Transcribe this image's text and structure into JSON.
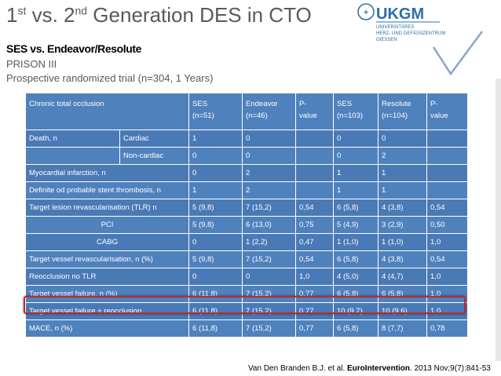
{
  "title": {
    "p1": "1",
    "sup1": "st",
    "p2": " vs. 2",
    "sup2": "nd",
    "p3": " Generation DES in CTO"
  },
  "logo": {
    "brand": "UKGM",
    "line1": "UNIVERSITÄRES",
    "line2": "HERZ- UND GEFÄSSZENTRUM",
    "line3": "GIESSEN"
  },
  "subtitle": "SES vs. Endeavor/Resolute",
  "trial_name": "PRISON III",
  "trial_desc": "Prospective randomized trial (n=304, 1 Years)",
  "header": {
    "col0": "Chronic total occlusion",
    "col1a": "SES",
    "col1b": "(n=51)",
    "col2a": "Endeavor",
    "col2b": "(n=46)",
    "col3a": "P-",
    "col3b": "value",
    "col4a": "SES",
    "col4b": "(n=103)",
    "col5a": "Resolute",
    "col5b": "(n=104)",
    "col6a": "P-",
    "col6b": "value"
  },
  "rows": [
    {
      "label": "Death, n",
      "sub": "Cardiac",
      "v": [
        "1",
        "0",
        "",
        "0",
        "0",
        ""
      ]
    },
    {
      "label": "",
      "sub": "Non-cardiac",
      "v": [
        "0",
        "0",
        "",
        "0",
        "2",
        ""
      ]
    },
    {
      "label": "Myocardial infarction, n",
      "v": [
        "0",
        "2",
        "",
        "1",
        "1",
        ""
      ]
    },
    {
      "label": "Definite od probable stent thrombosis, n",
      "v": [
        "1",
        "2",
        "",
        "1",
        "1",
        ""
      ]
    },
    {
      "label": "Target lesion revascularisation (TLR) n",
      "v": [
        "5 (9,8)",
        " 7 (15,2)",
        "0,54",
        "6 (5,8)",
        "4 (3,8)",
        "0,54"
      ]
    },
    {
      "label": "PCI",
      "v": [
        "5 (9,8)",
        "6 (13,0)",
        "0,75",
        "5 (4,9)",
        "3 (2,9)",
        "0,50"
      ]
    },
    {
      "label": "CABG",
      "v": [
        "0",
        "1 (2,2)",
        "0,47",
        "1 (1,0)",
        "1 (1,0)",
        "1,0"
      ]
    },
    {
      "label": "Target vessel revascularisation, n (%)",
      "v": [
        "5 (9,8)",
        "7 (15,2)",
        "0,54",
        "6 (5,8)",
        "4 (3,8)",
        "0,54"
      ]
    },
    {
      "label": "Reocclusion no TLR",
      "v": [
        "0",
        "0",
        "1,0",
        "4 (5,0)",
        "4 (4,7)",
        "1,0"
      ]
    },
    {
      "label": "Target vessel failure, n (%)",
      "v": [
        "6 (11,8)",
        "7 (15,2)",
        "0,77",
        "6 (5,8)",
        "6 (5,8)",
        "1,0"
      ]
    },
    {
      "label": "Target vessel failure + reocclusion",
      "v": [
        "6 (11,8)",
        "7 (15,2)",
        "0,77",
        "10 (9,7)",
        "10 (9,6)",
        "1,0"
      ]
    },
    {
      "label": "MACE, n (%)",
      "v": [
        "6 (11,8)",
        "7 (15,2)",
        "0,77",
        "6 (5,8)",
        "8 (7,7)",
        "0,78"
      ]
    }
  ],
  "citation": {
    "authors": "Van Den Branden B.J. et al. ",
    "journal": "EuroIntervention",
    "ref": ". 2013 Nov;9(7):841-53"
  },
  "colors": {
    "table_bg": "#4f81bd",
    "highlight": "#c0272d",
    "logo_blue": "#2e6da4"
  }
}
